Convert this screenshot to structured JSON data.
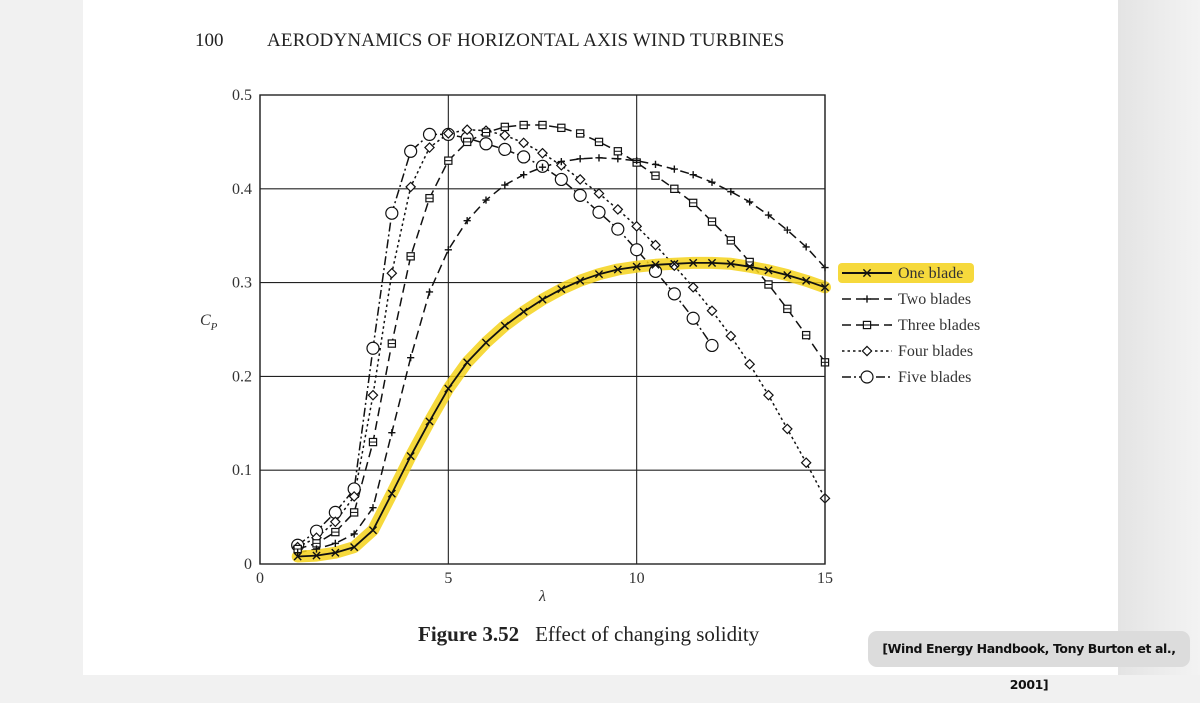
{
  "header": {
    "page_number": "100",
    "running_title": "AERODYNAMICS OF HORIZONTAL AXIS WIND TURBINES"
  },
  "caption": {
    "figure_number": "Figure 3.52",
    "text": "Effect of changing solidity"
  },
  "citation": "[Wind Energy Handbook, Tony Burton et al., 2001]",
  "colors": {
    "highlight": "#f5d21a",
    "curve": "#111111",
    "grid": "#222222"
  },
  "chart_data": {
    "type": "line",
    "title": "",
    "xlabel": "λ",
    "ylabel": "C_P",
    "ylabel_main": "C",
    "ylabel_sub": "P",
    "xlim": [
      0,
      15
    ],
    "ylim": [
      0,
      0.5
    ],
    "xticks": [
      0,
      5,
      10,
      15
    ],
    "xtick_labels": [
      "0",
      "5",
      "10",
      "15"
    ],
    "yticks": [
      0,
      0.1,
      0.2,
      0.3,
      0.4,
      0.5
    ],
    "ytick_labels": [
      "0",
      "0.1",
      "0.2",
      "0.3",
      "0.4",
      "0.5"
    ],
    "grid": true,
    "legend_position": "right",
    "highlighted_series": "One blade",
    "series": [
      {
        "name": "One blade",
        "line_style": "solid",
        "marker": "x",
        "x": [
          1,
          1.5,
          2,
          2.5,
          3,
          3.5,
          4,
          4.5,
          5,
          5.5,
          6,
          6.5,
          7,
          7.5,
          8,
          8.5,
          9,
          9.5,
          10,
          10.5,
          11,
          11.5,
          12,
          12.5,
          13,
          13.5,
          14,
          14.5,
          15
        ],
        "y": [
          0.008,
          0.009,
          0.012,
          0.018,
          0.036,
          0.075,
          0.115,
          0.152,
          0.187,
          0.215,
          0.236,
          0.254,
          0.269,
          0.282,
          0.293,
          0.302,
          0.309,
          0.314,
          0.317,
          0.319,
          0.32,
          0.321,
          0.321,
          0.32,
          0.317,
          0.313,
          0.308,
          0.302,
          0.295
        ]
      },
      {
        "name": "Two blades",
        "line_style": "dashed",
        "marker": "+",
        "x": [
          1,
          1.5,
          2,
          2.5,
          3,
          3.5,
          4,
          4.5,
          5,
          5.5,
          6,
          6.5,
          7,
          7.5,
          8,
          8.5,
          9,
          9.5,
          10,
          10.5,
          11,
          11.5,
          12,
          12.5,
          13,
          13.5,
          14,
          14.5,
          15
        ],
        "y": [
          0.012,
          0.016,
          0.022,
          0.032,
          0.06,
          0.14,
          0.22,
          0.29,
          0.335,
          0.366,
          0.388,
          0.404,
          0.415,
          0.423,
          0.429,
          0.432,
          0.433,
          0.432,
          0.43,
          0.426,
          0.421,
          0.415,
          0.407,
          0.397,
          0.386,
          0.372,
          0.356,
          0.338,
          0.316
        ]
      },
      {
        "name": "Three blades",
        "line_style": "dashed",
        "marker": "square",
        "x": [
          1,
          1.5,
          2,
          2.5,
          3,
          3.5,
          4,
          4.5,
          5,
          5.5,
          6,
          6.5,
          7,
          7.5,
          8,
          8.5,
          9,
          9.5,
          10,
          10.5,
          11,
          11.5,
          12,
          12.5,
          13,
          13.5,
          14,
          14.5,
          15
        ],
        "y": [
          0.016,
          0.022,
          0.034,
          0.055,
          0.13,
          0.235,
          0.328,
          0.39,
          0.43,
          0.45,
          0.46,
          0.466,
          0.468,
          0.468,
          0.465,
          0.459,
          0.45,
          0.44,
          0.428,
          0.414,
          0.4,
          0.385,
          0.365,
          0.345,
          0.322,
          0.298,
          0.272,
          0.244,
          0.215
        ]
      },
      {
        "name": "Four blades",
        "line_style": "dotted",
        "marker": "diamond",
        "x": [
          1,
          1.5,
          2,
          2.5,
          3,
          3.5,
          4,
          4.5,
          5,
          5.5,
          6,
          6.5,
          7,
          7.5,
          8,
          8.5,
          9,
          9.5,
          10,
          10.5,
          11,
          11.5,
          12,
          12.5,
          13,
          13.5,
          14,
          14.5,
          15
        ],
        "y": [
          0.018,
          0.028,
          0.045,
          0.072,
          0.18,
          0.31,
          0.402,
          0.444,
          0.459,
          0.463,
          0.462,
          0.457,
          0.449,
          0.438,
          0.425,
          0.41,
          0.395,
          0.378,
          0.36,
          0.34,
          0.318,
          0.295,
          0.27,
          0.243,
          0.213,
          0.18,
          0.144,
          0.108,
          0.07
        ]
      },
      {
        "name": "Five blades",
        "line_style": "dash-dot",
        "marker": "circle",
        "x": [
          1,
          1.5,
          2,
          2.5,
          3,
          3.5,
          4,
          4.5,
          5,
          5.5,
          6,
          6.5,
          7,
          7.5,
          8,
          8.5,
          9,
          9.5,
          10,
          10.5,
          11,
          11.5,
          12
        ],
        "y": [
          0.02,
          0.035,
          0.055,
          0.08,
          0.23,
          0.374,
          0.44,
          0.458,
          0.458,
          0.454,
          0.448,
          0.442,
          0.434,
          0.424,
          0.41,
          0.393,
          0.375,
          0.357,
          0.335,
          0.312,
          0.288,
          0.262,
          0.233
        ]
      }
    ]
  }
}
